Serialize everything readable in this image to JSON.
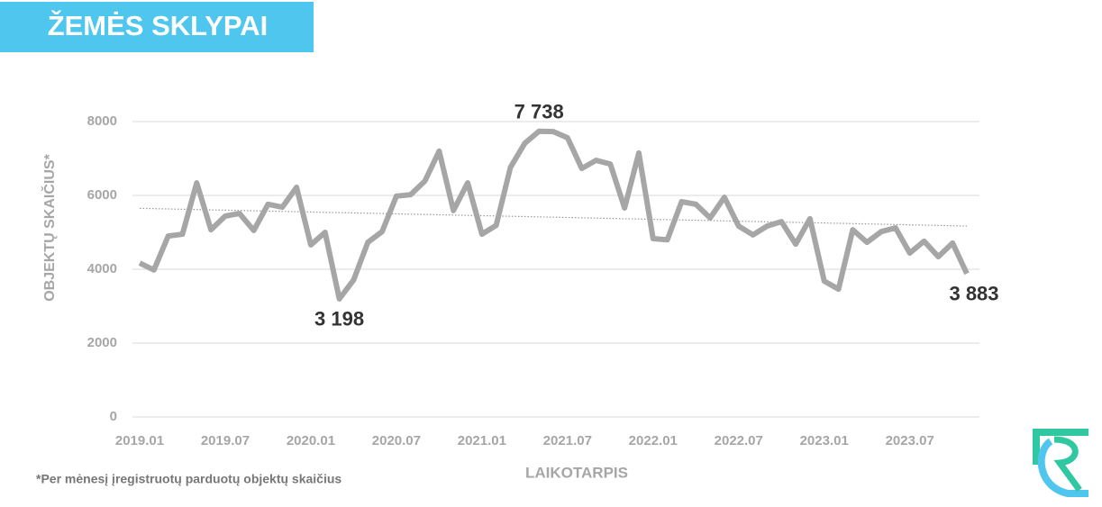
{
  "chart_data": {
    "type": "line",
    "title": "ŽEMĖS SKLYPAI",
    "ylabel": "OBJEKTŲ SKAIČIUS*",
    "xlabel": "LAIKOTARPIS",
    "footnote": "*Per mėnesį įregistruotų parduotų objektų skaičius",
    "categories": [
      "2019.01",
      null,
      null,
      null,
      null,
      null,
      "2019.07",
      null,
      null,
      null,
      null,
      null,
      "2020.01",
      null,
      null,
      null,
      null,
      null,
      "2020.07",
      null,
      null,
      null,
      null,
      null,
      "2021.01",
      null,
      null,
      null,
      null,
      null,
      "2021.07",
      null,
      null,
      null,
      null,
      null,
      "2022.01",
      null,
      null,
      null,
      null,
      null,
      "2022.07",
      null,
      null,
      null,
      null,
      null,
      "2023.01",
      null,
      null,
      null,
      null,
      null,
      "2023.07",
      null,
      null,
      null,
      null
    ],
    "values": [
      4170,
      3980,
      4900,
      4950,
      6340,
      5070,
      5440,
      5510,
      5050,
      5760,
      5680,
      6220,
      4660,
      5000,
      3198,
      3710,
      4730,
      5020,
      5980,
      6020,
      6390,
      7200,
      5590,
      6340,
      4950,
      5190,
      6760,
      7410,
      7738,
      7730,
      7560,
      6730,
      6950,
      6850,
      5660,
      7150,
      4830,
      4800,
      5830,
      5760,
      5390,
      5950,
      5170,
      4930,
      5170,
      5290,
      4680,
      5370,
      3680,
      3460,
      5070,
      4730,
      5020,
      5120,
      4440,
      4760,
      4340,
      4710,
      3883
    ],
    "value_labels": [
      null,
      null,
      null,
      null,
      null,
      null,
      null,
      null,
      null,
      null,
      null,
      null,
      null,
      null,
      "3 198",
      null,
      null,
      null,
      null,
      null,
      null,
      null,
      null,
      null,
      null,
      null,
      null,
      null,
      "7 738",
      null,
      null,
      null,
      null,
      null,
      null,
      null,
      null,
      null,
      null,
      null,
      null,
      null,
      null,
      null,
      null,
      null,
      null,
      null,
      null,
      null,
      null,
      null,
      null,
      null,
      null,
      null,
      null,
      null,
      "3 883"
    ],
    "color": "#a6a6a6",
    "trend": [
      5650,
      5170
    ],
    "ylim": [
      0,
      8000
    ],
    "yticks": [
      0,
      2000,
      4000,
      6000,
      8000
    ],
    "grid": true
  }
}
